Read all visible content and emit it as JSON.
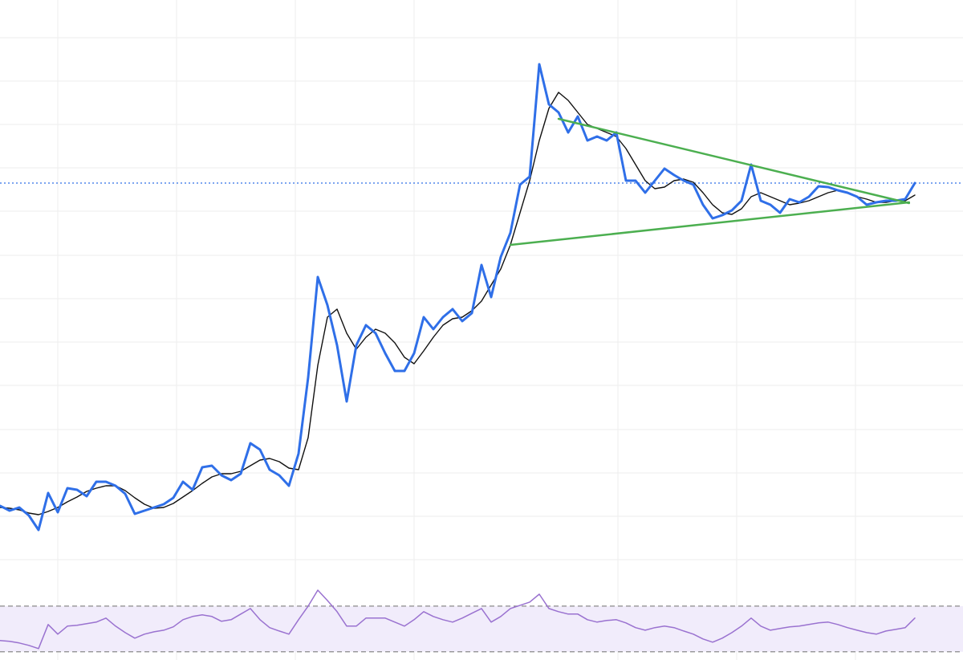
{
  "chart_data": {
    "type": "line",
    "x": [
      0,
      1,
      2,
      3,
      4,
      5,
      6,
      7,
      8,
      9,
      10,
      11,
      12,
      13,
      14,
      15,
      16,
      17,
      18,
      19,
      20,
      21,
      22,
      23,
      24,
      25,
      26,
      27,
      28,
      29,
      30,
      31,
      32,
      33,
      34,
      35,
      36,
      37,
      38,
      39,
      40,
      41,
      42,
      43,
      44,
      45,
      46,
      47,
      48,
      49,
      50,
      51,
      52,
      53,
      54,
      55,
      56,
      57,
      58,
      59,
      60,
      61,
      62,
      63,
      64,
      65,
      66,
      67,
      68,
      69,
      70,
      71,
      72,
      73,
      74,
      75,
      76,
      77,
      78,
      79,
      80,
      81,
      82,
      83,
      84,
      85,
      86,
      87,
      88,
      89,
      90,
      91,
      92,
      93,
      94,
      95
    ],
    "xlim": [
      0,
      100
    ],
    "ylim": [
      0,
      745
    ],
    "series": [
      {
        "color": "#2f6fe8",
        "values": [
          115,
          109,
          113,
          103,
          85,
          131,
          107,
          137,
          135,
          127,
          145,
          145,
          140,
          130,
          105,
          109,
          113,
          117,
          125,
          145,
          135,
          163,
          165,
          153,
          147,
          155,
          193,
          185,
          160,
          153,
          140,
          180,
          275,
          400,
          365,
          315,
          245,
          315,
          340,
          330,
          305,
          283,
          283,
          305,
          350,
          335,
          350,
          360,
          345,
          355,
          415,
          375,
          425,
          455,
          515,
          525,
          665,
          615,
          605,
          580,
          600,
          570,
          575,
          570,
          580,
          520,
          520,
          505,
          520,
          535,
          527,
          520,
          515,
          490,
          473,
          477,
          483,
          495,
          540,
          495,
          490,
          480,
          497,
          493,
          500,
          513,
          512,
          508,
          505,
          500,
          490,
          493,
          495,
          495,
          497,
          517
        ]
      },
      {
        "color": "#111111",
        "values": [
          113,
          112,
          110,
          106,
          104,
          108,
          113,
          120,
          126,
          133,
          137,
          140,
          140,
          134,
          125,
          117,
          112,
          113,
          118,
          126,
          134,
          143,
          151,
          155,
          155,
          158,
          165,
          172,
          174,
          170,
          162,
          160,
          200,
          290,
          350,
          360,
          330,
          310,
          325,
          335,
          330,
          318,
          300,
          292,
          308,
          325,
          340,
          348,
          350,
          358,
          370,
          390,
          410,
          440,
          480,
          520,
          570,
          610,
          630,
          620,
          605,
          590,
          585,
          580,
          575,
          560,
          540,
          520,
          510,
          512,
          520,
          522,
          518,
          505,
          490,
          480,
          478,
          485,
          500,
          505,
          500,
          495,
          490,
          492,
          495,
          500,
          505,
          508,
          505,
          500,
          497,
          493,
          493,
          495,
          495,
          502
        ]
      }
    ],
    "trendlines": [
      {
        "color": "#4caf50",
        "x": [
          58,
          94.4
        ],
        "values": [
          597,
          492
        ]
      },
      {
        "color": "#4caf50",
        "x": [
          53,
          94.4
        ],
        "values": [
          440,
          493
        ]
      }
    ],
    "price_line": {
      "value": 517,
      "color": "#2f6fe8"
    },
    "rsi": {
      "type": "line",
      "color": "#9a72d0",
      "band_color": "#f1ecfb",
      "ylim": [
        27,
        87.5
      ],
      "levels": [
        30,
        70
      ],
      "values": [
        39.8,
        39.1,
        37.7,
        35.6,
        32.8,
        53.9,
        45.4,
        52.5,
        53.2,
        54.6,
        56.0,
        59.5,
        52.5,
        46.8,
        41.9,
        45.4,
        47.5,
        48.9,
        51.8,
        58.1,
        60.9,
        62.3,
        60.9,
        56.7,
        58.1,
        63.0,
        67.9,
        58.1,
        51.1,
        48.2,
        45.4,
        58.1,
        70.0,
        84.0,
        74.9,
        65.1,
        52.5,
        52.5,
        59.5,
        59.5,
        59.5,
        56.0,
        52.5,
        58.1,
        65.1,
        60.9,
        58.1,
        56.0,
        59.5,
        63.7,
        67.9,
        56.0,
        60.9,
        67.9,
        70.7,
        73.5,
        80.5,
        67.9,
        65.1,
        63.0,
        63.0,
        58.1,
        56.0,
        57.4,
        58.1,
        55.3,
        51.1,
        48.9,
        51.1,
        52.5,
        51.1,
        48.2,
        45.4,
        41.2,
        38.4,
        41.9,
        46.8,
        52.5,
        59.5,
        52.5,
        48.9,
        50.4,
        51.8,
        52.5,
        53.9,
        55.3,
        56.0,
        53.9,
        51.1,
        48.9,
        46.8,
        45.4,
        48.2,
        49.6,
        51.1,
        59.5
      ]
    }
  }
}
